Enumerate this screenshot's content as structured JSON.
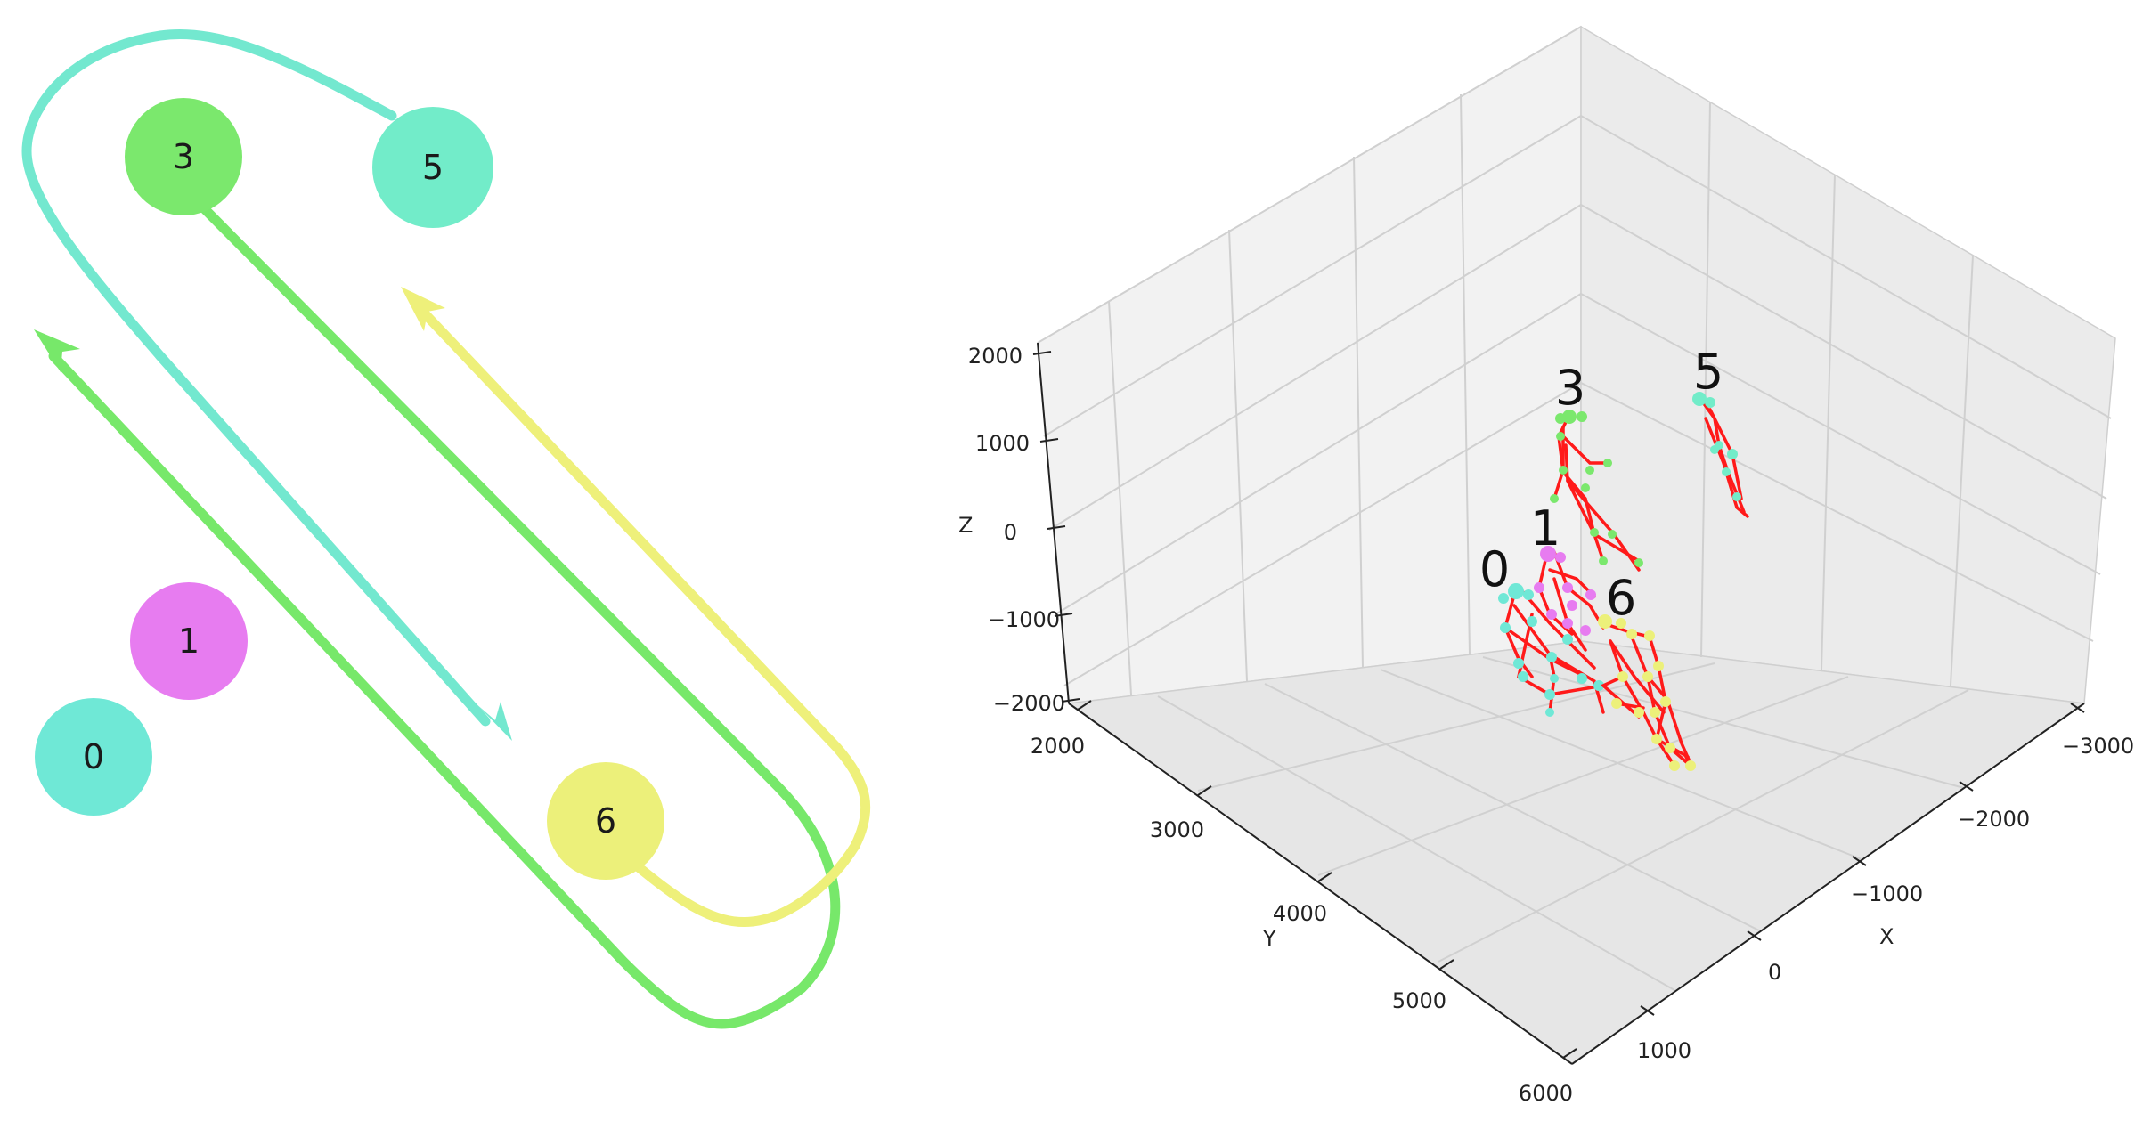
{
  "colors": {
    "green": "#7be86d",
    "teal": "#72ecc9",
    "turquoise": "#6fe8d6",
    "magenta": "#e77cf0",
    "yellow": "#ecf07a",
    "path_green": "#77e86a",
    "path_teal": "#73e8cf",
    "path_yellow": "#eef07a",
    "bone": "#ff1a1a"
  },
  "diagram": {
    "nodes": [
      {
        "id": "3",
        "label": "3",
        "color": "green"
      },
      {
        "id": "5",
        "label": "5",
        "color": "teal"
      },
      {
        "id": "1",
        "label": "1",
        "color": "magenta"
      },
      {
        "id": "0",
        "label": "0",
        "color": "turquoise"
      },
      {
        "id": "6",
        "label": "6",
        "color": "yellow"
      }
    ],
    "paths": [
      {
        "from": "5",
        "color": "path_teal",
        "direction": "down-right arrow"
      },
      {
        "from": "3",
        "color": "path_green",
        "direction": "up-left arrow"
      },
      {
        "from": "6",
        "color": "path_yellow",
        "direction": "up-left arrow"
      }
    ]
  },
  "plot3d": {
    "z_axis": {
      "label": "Z",
      "ticks": [
        "2000",
        "1000",
        "0",
        "−1000",
        "−2000"
      ]
    },
    "y_axis": {
      "label": "Y",
      "ticks": [
        "2000",
        "3000",
        "4000",
        "5000",
        "6000"
      ]
    },
    "x_axis": {
      "label": "X",
      "ticks": [
        "−3000",
        "−2000",
        "−1000",
        "0",
        "1000"
      ]
    },
    "persons": [
      {
        "label": "3",
        "color": "green"
      },
      {
        "label": "5",
        "color": "teal"
      },
      {
        "label": "1",
        "color": "magenta"
      },
      {
        "label": "0",
        "color": "turquoise"
      },
      {
        "label": "6",
        "color": "yellow"
      }
    ]
  }
}
